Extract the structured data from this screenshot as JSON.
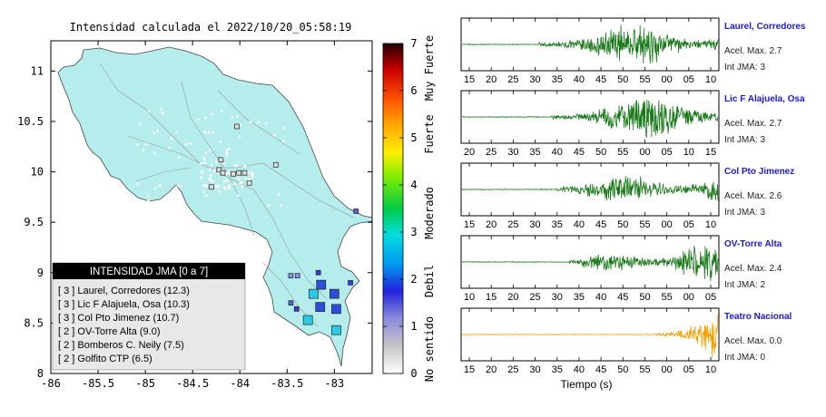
{
  "map": {
    "title": "Intensidad calculada el 2022/10/20_05:58:19",
    "x_ticks": [
      "-86",
      "-85.5",
      "-85",
      "-84.5",
      "-84",
      "-83.5",
      "-83"
    ],
    "y_ticks": [
      "8",
      "8.5",
      "9",
      "9.5",
      "10",
      "10.5",
      "11"
    ],
    "xlim": [
      -86,
      -82.6
    ],
    "ylim": [
      8,
      11.3
    ],
    "land_color": "#b5ecec",
    "legend": {
      "title": "INTENSIDAD JMA [0 a 7]",
      "items": [
        "[ 3 ]  Laurel, Corredores (12.3)",
        "[ 3 ]  Lic F Alajuela, Osa (10.3)",
        "[ 3 ]  Col Pto Jimenez (10.7)",
        "[ 2 ]  OV-Torre Alta (9.0)",
        "[ 2 ]  Bomberos C. Neily (7.5)",
        "[ 2 ]  Golfito CTP (6.5)"
      ]
    },
    "stations": [
      {
        "lon": -83.28,
        "lat": 8.53,
        "color": "#27cde8"
      },
      {
        "lon": -83.22,
        "lat": 8.79,
        "color": "#27cde8"
      },
      {
        "lon": -83.0,
        "lat": 8.79,
        "color": "#2a4fd8"
      },
      {
        "lon": -83.15,
        "lat": 8.66,
        "color": "#2a4fd8"
      },
      {
        "lon": -83.14,
        "lat": 8.88,
        "color": "#2a4fd8"
      },
      {
        "lon": -82.98,
        "lat": 8.64,
        "color": "#2a4fd8"
      },
      {
        "lon": -82.98,
        "lat": 8.43,
        "color": "#27cde8"
      },
      {
        "lon": -83.46,
        "lat": 8.7,
        "color": "#5e5ecb"
      },
      {
        "lon": -83.4,
        "lat": 8.64,
        "color": "#3a3ad6"
      },
      {
        "lon": -83.46,
        "lat": 8.97,
        "color": "#8c8ce0"
      },
      {
        "lon": -83.39,
        "lat": 8.97,
        "color": "#8c8ce0"
      },
      {
        "lon": -83.17,
        "lat": 9.0,
        "color": "#3a3ad6"
      },
      {
        "lon": -82.83,
        "lat": 8.9,
        "color": "#3a3ad6"
      },
      {
        "lon": -82.77,
        "lat": 9.61,
        "color": "#5e5ecb"
      },
      {
        "lon": -84.03,
        "lat": 10.45,
        "color": "#dddddd"
      },
      {
        "lon": -83.62,
        "lat": 10.07,
        "color": "#dddddd"
      },
      {
        "lon": -83.95,
        "lat": 9.99,
        "color": "#dddddd"
      },
      {
        "lon": -84.01,
        "lat": 9.99,
        "color": "#dddddd"
      },
      {
        "lon": -84.2,
        "lat": 10.12,
        "color": "#dddddd"
      },
      {
        "lon": -84.22,
        "lat": 10.02,
        "color": "#dddddd"
      },
      {
        "lon": -84.07,
        "lat": 9.98,
        "color": "#dddddd"
      },
      {
        "lon": -84.18,
        "lat": 9.99,
        "color": "#dddddd"
      },
      {
        "lon": -83.9,
        "lat": 9.89,
        "color": "#dddddd"
      },
      {
        "lon": -84.3,
        "lat": 9.85,
        "color": "#dddddd"
      }
    ]
  },
  "colorbar": {
    "ticks": [
      "0",
      "1",
      "2",
      "3",
      "4",
      "5",
      "6",
      "7"
    ],
    "labels": [
      "No sentido",
      "Debil",
      "Moderado",
      "Fuerte",
      "Muy Fuerte"
    ]
  },
  "traces": [
    {
      "name": "Laurel, Corredores",
      "acel": "Acel. Max. 2.7",
      "int": "Int JMA: 3",
      "ticks": [
        "15",
        "20",
        "25",
        "30",
        "35",
        "40",
        "45",
        "50",
        "55",
        "00",
        "05",
        "10"
      ],
      "onset": 0.3,
      "amp": 0.9,
      "seed": 11,
      "color": "#1a7a1a"
    },
    {
      "name": "Lic F Alajuela, Osa",
      "acel": "Acel. Max. 2.7",
      "int": "Int JMA: 3",
      "ticks": [
        "20",
        "25",
        "30",
        "35",
        "40",
        "45",
        "50",
        "55",
        "00",
        "05",
        "10",
        "15"
      ],
      "onset": 0.35,
      "amp": 0.95,
      "seed": 23,
      "color": "#1a7a1a"
    },
    {
      "name": "Col Pto Jimenez",
      "acel": "Acel. Max. 2.6",
      "int": "Int JMA: 3",
      "ticks": [
        "15",
        "20",
        "25",
        "30",
        "35",
        "40",
        "45",
        "50",
        "55",
        "00",
        "05",
        "10"
      ],
      "onset": 0.37,
      "amp": 0.75,
      "seed": 37,
      "color": "#1a7a1a"
    },
    {
      "name": "OV-Torre Alta",
      "acel": "Acel. Max. 2.4",
      "int": "Int JMA: 2",
      "ticks": [
        "10",
        "15",
        "20",
        "25",
        "30",
        "35",
        "40",
        "45",
        "50",
        "55",
        "00",
        "05"
      ],
      "onset": 0.42,
      "amp": 0.8,
      "seed": 51,
      "color": "#1a7a1a"
    },
    {
      "name": "Teatro Nacional",
      "acel": "Acel. Max. 0.0",
      "int": "Int JMA: 0",
      "ticks": [
        "15",
        "20",
        "25",
        "30",
        "35",
        "40",
        "45",
        "50",
        "55",
        "00",
        "05",
        "10"
      ],
      "onset": 0.75,
      "amp": 0.85,
      "seed": 67,
      "color": "#f5a000"
    }
  ],
  "xlabel": "Tiempo (s)",
  "chart_data": [
    {
      "type": "scatter",
      "title": "Intensidad calculada el 2022/10/20_05:58:19",
      "xlim": [
        -86,
        -82.6
      ],
      "ylim": [
        8,
        11.3
      ],
      "legend_title": "INTENSIDAD JMA [0 a 7]",
      "points": [
        {
          "station": "Laurel, Corredores",
          "intensity": 3,
          "distance": 12.3
        },
        {
          "station": "Lic F Alajuela, Osa",
          "intensity": 3,
          "distance": 10.3
        },
        {
          "station": "Col Pto Jimenez",
          "intensity": 3,
          "distance": 10.7
        },
        {
          "station": "OV-Torre Alta",
          "intensity": 2,
          "distance": 9.0
        },
        {
          "station": "Bomberos C. Neily",
          "intensity": 2,
          "distance": 7.5
        },
        {
          "station": "Golfito CTP",
          "intensity": 2,
          "distance": 6.5
        }
      ],
      "colorbar_range": [
        0,
        7
      ]
    },
    {
      "type": "line",
      "xlabel": "Tiempo (s)",
      "series": [
        {
          "name": "Laurel, Corredores",
          "acel_max": 2.7,
          "int_jma": 3
        },
        {
          "name": "Lic F Alajuela, Osa",
          "acel_max": 2.7,
          "int_jma": 3
        },
        {
          "name": "Col Pto Jimenez",
          "acel_max": 2.6,
          "int_jma": 3
        },
        {
          "name": "OV-Torre Alta",
          "acel_max": 2.4,
          "int_jma": 2
        },
        {
          "name": "Teatro Nacional",
          "acel_max": 0.0,
          "int_jma": 0
        }
      ]
    }
  ]
}
